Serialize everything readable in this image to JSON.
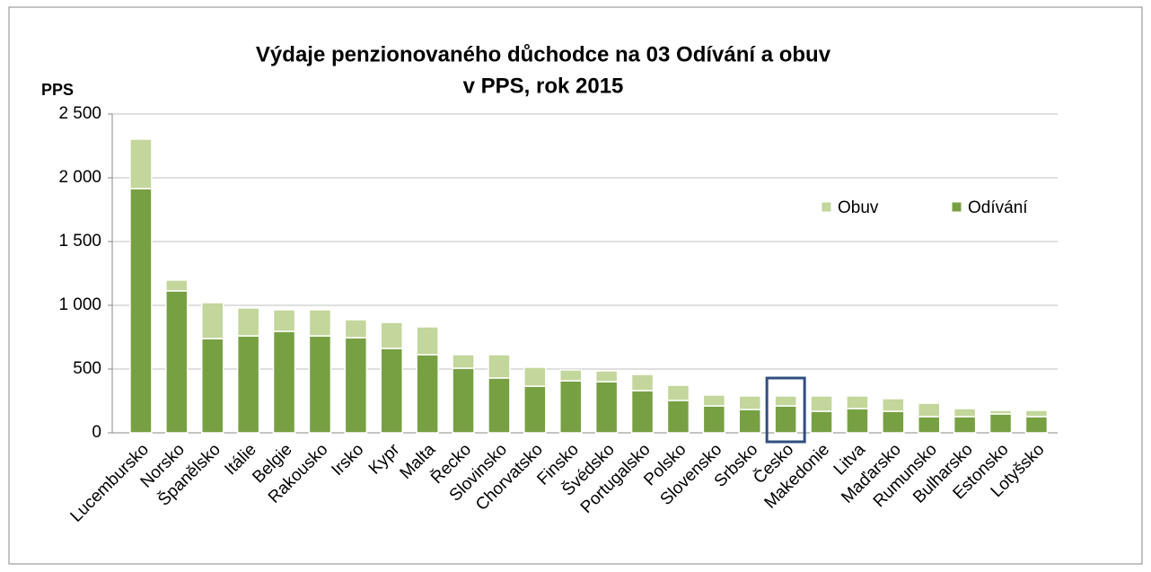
{
  "chart_data": {
    "type": "stacked_bar",
    "title": "Výdaje penzionovaného důchodce na 03 Odívání a obuv",
    "subtitle": "v PPS, rok 2015",
    "y_label": "PPS",
    "categories": [
      "Lucembursko",
      "Norsko",
      "Španělsko",
      "Itálie",
      "Belgie",
      "Rakousko",
      "Irsko",
      "Kypr",
      "Malta",
      "Řecko",
      "Slovinsko",
      "Chorvatsko",
      "Finsko",
      "Švédsko",
      "Portugalsko",
      "Polsko",
      "Slovensko",
      "Srbsko",
      "Česko",
      "Makedonie",
      "Litva",
      "Maďarsko",
      "Rumunsko",
      "Bulharsko",
      "Estonsko",
      "Lotyšsko"
    ],
    "series": [
      {
        "name": "Odívání",
        "color": "#77a043",
        "values": [
          1915,
          1113,
          739,
          760,
          796,
          760,
          746,
          662,
          613,
          507,
          430,
          366,
          408,
          401,
          331,
          254,
          211,
          183,
          211,
          169,
          190,
          169,
          127,
          127,
          148,
          127
        ]
      },
      {
        "name": "Obuv",
        "color": "#c3d69b",
        "values": [
          388,
          85,
          282,
          219,
          169,
          205,
          141,
          204,
          218,
          106,
          183,
          148,
          85,
          85,
          127,
          119,
          85,
          106,
          78,
          120,
          99,
          99,
          105,
          63,
          28,
          49
        ]
      }
    ],
    "ylim": [
      0,
      2500
    ],
    "yticks": [
      0,
      500,
      {
        "value": 1000,
        "label": "1 000"
      },
      {
        "value": 1500,
        "label": "1 500"
      },
      {
        "value": 2000,
        "label": "2 000"
      },
      {
        "value": 2500,
        "label": "2 500"
      }
    ],
    "grid": true,
    "legend": "upper right"
  }
}
